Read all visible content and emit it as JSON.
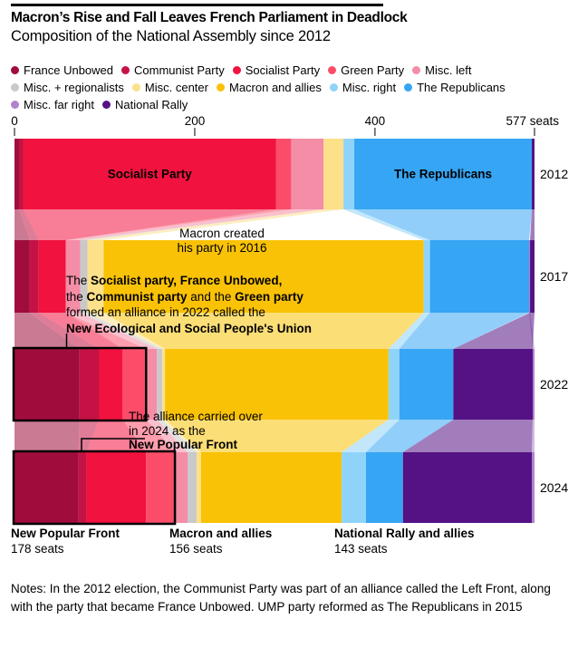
{
  "header": {
    "title": "Macron’s Rise and Fall Leaves French Parliament in Deadlock",
    "subtitle": "Composition of the National Assembly since 2012"
  },
  "chart_data": {
    "type": "bar",
    "subtype": "stacked-bar-alluvial-flow",
    "unit": "seats",
    "total_seats": 577,
    "axis": {
      "ticks": [
        {
          "value": 0,
          "label": "0"
        },
        {
          "value": 200,
          "label": "200"
        },
        {
          "value": 400,
          "label": "400"
        },
        {
          "value": 577,
          "label": "577 seats"
        }
      ]
    },
    "parties": [
      {
        "id": "france-unbowed",
        "label": "France Unbowed",
        "color": "#a00d3d"
      },
      {
        "id": "communist-party",
        "label": "Communist Party",
        "color": "#c51245"
      },
      {
        "id": "socialist-party",
        "label": "Socialist Party",
        "color": "#f2123f"
      },
      {
        "id": "green-party",
        "label": "Green Party",
        "color": "#fb4d6a"
      },
      {
        "id": "misc-left",
        "label": "Misc. left",
        "color": "#f48da6"
      },
      {
        "id": "misc-regionalists",
        "label": "Misc. + regionalists",
        "color": "#c9c9c9"
      },
      {
        "id": "misc-center",
        "label": "Misc. center",
        "color": "#fce08a"
      },
      {
        "id": "macron-and-allies",
        "label": "Macron and allies",
        "color": "#f9c206"
      },
      {
        "id": "misc-right",
        "label": "Misc. right",
        "color": "#8fd4f8"
      },
      {
        "id": "the-republicans",
        "label": "The Republicans",
        "color": "#36a5f4"
      },
      {
        "id": "misc-far-right",
        "label": "Misc. far right",
        "color": "#b183cc"
      },
      {
        "id": "national-rally",
        "label": "National Rally",
        "color": "#551285"
      }
    ],
    "years": [
      {
        "label": "2012",
        "segments": [
          [
            "france-unbowed",
            5
          ],
          [
            "communist-party",
            5
          ],
          [
            "socialist-party",
            280
          ],
          [
            "green-party",
            17
          ],
          [
            "misc-left",
            36
          ],
          [
            "misc-regionalists",
            0
          ],
          [
            "misc-center",
            22
          ],
          [
            "misc-right",
            12
          ],
          [
            "the-republicans",
            197
          ],
          [
            "national-rally",
            3
          ]
        ]
      },
      {
        "label": "2017",
        "segments": [
          [
            "france-unbowed",
            17
          ],
          [
            "communist-party",
            10
          ],
          [
            "socialist-party",
            30
          ],
          [
            "green-party",
            0
          ],
          [
            "misc-left",
            16
          ],
          [
            "misc-regionalists",
            8
          ],
          [
            "misc-center",
            18
          ],
          [
            "macron-and-allies",
            355
          ],
          [
            "misc-right",
            7
          ],
          [
            "the-republicans",
            110
          ],
          [
            "misc-far-right",
            1
          ],
          [
            "national-rally",
            5
          ]
        ]
      },
      {
        "label": "2022",
        "segments": [
          [
            "france-unbowed",
            72
          ],
          [
            "communist-party",
            22
          ],
          [
            "socialist-party",
            26
          ],
          [
            "green-party",
            26
          ],
          [
            "misc-left",
            12
          ],
          [
            "misc-regionalists",
            6
          ],
          [
            "misc-center",
            3
          ],
          [
            "macron-and-allies",
            248
          ],
          [
            "misc-right",
            12
          ],
          [
            "the-republicans",
            60
          ],
          [
            "national-rally",
            88
          ],
          [
            "misc-far-right",
            2
          ]
        ]
      },
      {
        "label": "2024",
        "segments": [
          [
            "france-unbowed",
            71
          ],
          [
            "communist-party",
            9
          ],
          [
            "socialist-party",
            66
          ],
          [
            "green-party",
            33
          ],
          [
            "misc-left",
            13
          ],
          [
            "misc-regionalists",
            10
          ],
          [
            "misc-center",
            5
          ],
          [
            "macron-and-allies",
            156
          ],
          [
            "misc-right",
            27
          ],
          [
            "the-republicans",
            41
          ],
          [
            "national-rally",
            143
          ],
          [
            "misc-far-right",
            3
          ]
        ]
      }
    ],
    "bar_value_labels": [
      {
        "year": "2012",
        "party": "socialist-party",
        "text": "Socialist Party"
      },
      {
        "year": "2012",
        "party": "the-republicans",
        "text": "The Republicans"
      }
    ],
    "alliance_boxes": [
      {
        "year": "2022",
        "from_seat": 0,
        "to_seat": 146
      },
      {
        "year": "2024",
        "from_seat": 0,
        "to_seat": 178
      }
    ]
  },
  "annotations": {
    "macron": {
      "lines": [
        "Macron created",
        "his party in 2016"
      ]
    },
    "alliance": {
      "lines": [
        [
          {
            "t": "The ",
            "b": false
          },
          {
            "t": "Socialist party, France Unbowed,",
            "b": true
          }
        ],
        [
          {
            "t": "the ",
            "b": false
          },
          {
            "t": "Communist party",
            "b": true
          },
          {
            "t": " and the ",
            "b": false
          },
          {
            "t": "Green party",
            "b": true
          }
        ],
        [
          {
            "t": "formed an alliance in 2022 called the",
            "b": false
          }
        ],
        [
          {
            "t": "New Ecological and Social People's Union",
            "b": true
          }
        ]
      ]
    },
    "nfp": {
      "lines": [
        [
          {
            "t": "The alliance carried over",
            "b": false
          }
        ],
        [
          {
            "t": "in 2024 as the",
            "b": false
          }
        ],
        [
          {
            "t": "New Popular Front",
            "b": true
          }
        ]
      ]
    }
  },
  "footer_labels": [
    {
      "name": "New Popular Front",
      "seats": "178 seats"
    },
    {
      "name": "Macron and allies",
      "seats": "156 seats"
    },
    {
      "name": "National Rally and allies",
      "seats": "143 seats"
    }
  ],
  "notes": "Notes: In the 2012 election, the Communist Party was part of an alliance called the Left Front, along with the party that became France Unbowed. UMP party reformed as The Republicans in 2015"
}
